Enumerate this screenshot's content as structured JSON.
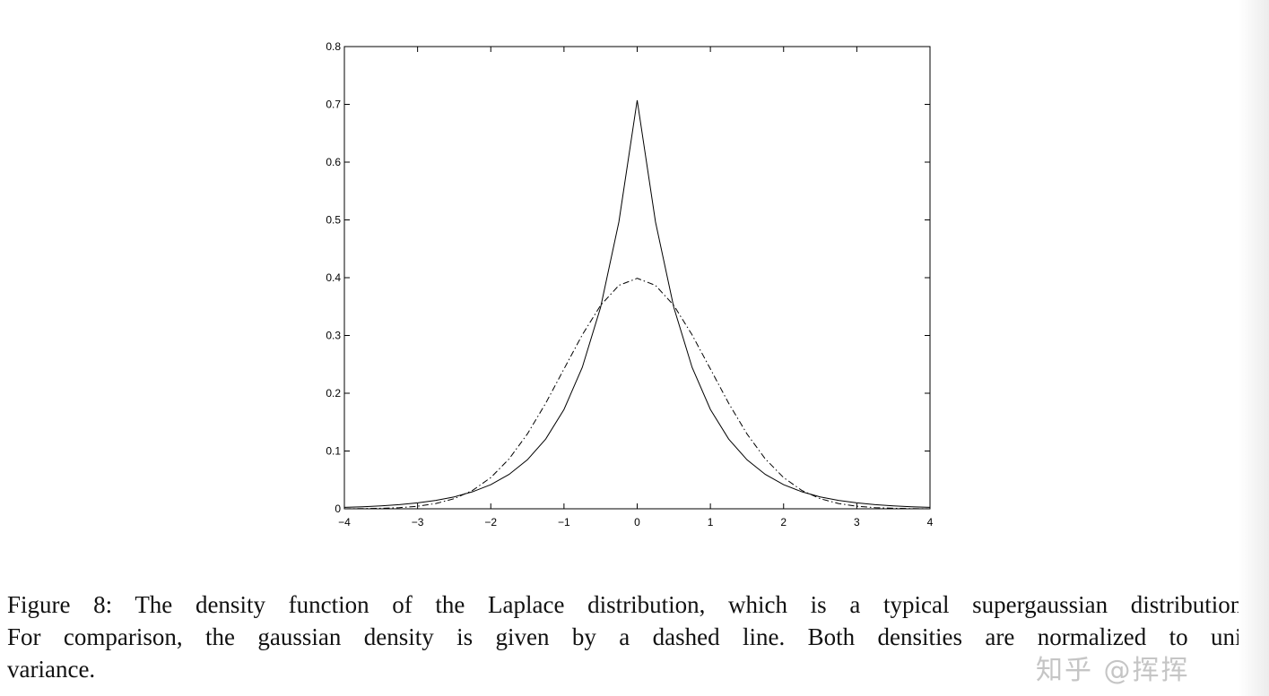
{
  "chart_data": {
    "type": "line",
    "xlim": [
      -4,
      4
    ],
    "ylim": [
      0,
      0.8
    ],
    "xticks": [
      "−4",
      "−3",
      "−2",
      "−1",
      "0",
      "1",
      "2",
      "3",
      "4"
    ],
    "xtick_values": [
      -4,
      -3,
      -2,
      -1,
      0,
      1,
      2,
      3,
      4
    ],
    "yticks": [
      "0",
      "0.1",
      "0.2",
      "0.3",
      "0.4",
      "0.5",
      "0.6",
      "0.7",
      "0.8"
    ],
    "ytick_values": [
      0,
      0.1,
      0.2,
      0.3,
      0.4,
      0.5,
      0.6,
      0.7,
      0.8
    ],
    "grid": false,
    "x": [
      -4,
      -3.75,
      -3.5,
      -3.25,
      -3,
      -2.75,
      -2.5,
      -2.25,
      -2,
      -1.75,
      -1.5,
      -1.25,
      -1,
      -0.75,
      -0.5,
      -0.25,
      0,
      0.25,
      0.5,
      0.75,
      1,
      1.25,
      1.5,
      1.75,
      2,
      2.25,
      2.5,
      2.75,
      3,
      3.25,
      3.5,
      3.75,
      4
    ],
    "series": [
      {
        "style": "solid",
        "color": "#000000",
        "values": [
          0.0025,
          0.0035,
          0.005,
          0.0071,
          0.0102,
          0.0145,
          0.0206,
          0.0294,
          0.0418,
          0.0595,
          0.0848,
          0.1207,
          0.1719,
          0.2448,
          0.3487,
          0.4965,
          0.7071,
          0.4965,
          0.3487,
          0.2448,
          0.1719,
          0.1207,
          0.0848,
          0.0595,
          0.0418,
          0.0294,
          0.0206,
          0.0145,
          0.0102,
          0.0071,
          0.005,
          0.0035,
          0.0025
        ]
      },
      {
        "style": "dash-dot",
        "color": "#000000",
        "values": [
          0.0001,
          0.0004,
          0.0009,
          0.002,
          0.0044,
          0.0091,
          0.0175,
          0.0317,
          0.054,
          0.0863,
          0.1295,
          0.1826,
          0.242,
          0.3011,
          0.3521,
          0.3867,
          0.3989,
          0.3867,
          0.3521,
          0.3011,
          0.242,
          0.1826,
          0.1295,
          0.0863,
          0.054,
          0.0317,
          0.0175,
          0.0091,
          0.0044,
          0.002,
          0.0009,
          0.0004,
          0.0001
        ]
      }
    ]
  },
  "caption_lines": [
    "Figure 8: The density function of the Laplace distribution, which is a typical supergaussian distribution.",
    "For comparison, the gaussian density is given by a dashed line.  Both densities are normalized to unit",
    "variance."
  ],
  "watermark": "知乎 @挥挥"
}
